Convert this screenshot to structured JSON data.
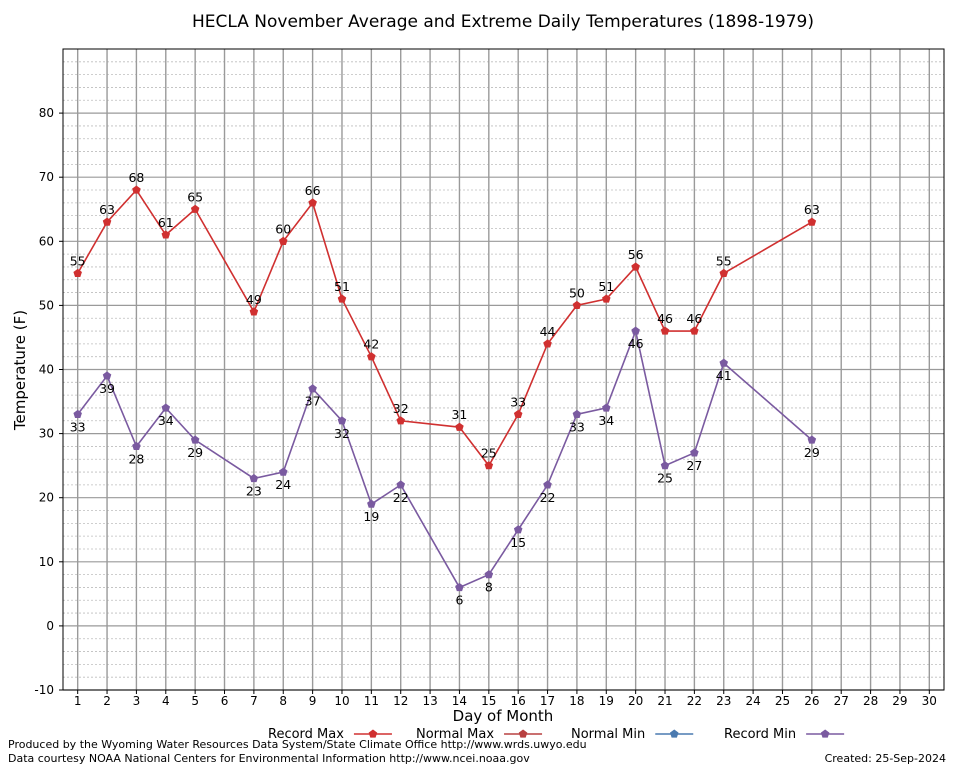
{
  "chart_data": {
    "type": "line",
    "title": "HECLA November Average and Extreme Daily Temperatures (1898-1979)",
    "xlabel": "Day of Month",
    "ylabel": "Temperature (F)",
    "xlim": [
      0.5,
      30.5
    ],
    "ylim": [
      -10,
      90
    ],
    "x_ticks": [
      1,
      2,
      3,
      4,
      5,
      6,
      7,
      8,
      9,
      10,
      11,
      12,
      13,
      14,
      15,
      16,
      17,
      18,
      19,
      20,
      21,
      22,
      23,
      24,
      25,
      26,
      27,
      28,
      29,
      30
    ],
    "y_ticks": [
      -10,
      0,
      10,
      20,
      30,
      40,
      50,
      60,
      70,
      80
    ],
    "grid": true,
    "legend_position": "bottom",
    "series": [
      {
        "name": "Record Max",
        "color": "#d03030",
        "label_position": "above",
        "x": [
          1,
          2,
          3,
          4,
          5,
          7,
          8,
          9,
          10,
          11,
          12,
          14,
          15,
          16,
          17,
          18,
          19,
          20,
          21,
          22,
          23,
          26
        ],
        "values": [
          55,
          63,
          68,
          61,
          65,
          49,
          60,
          66,
          51,
          42,
          32,
          31,
          25,
          33,
          44,
          50,
          51,
          56,
          46,
          46,
          55,
          63
        ]
      },
      {
        "name": "Normal Max",
        "color": "#b84040",
        "label_position": "none",
        "x": [],
        "values": []
      },
      {
        "name": "Normal Min",
        "color": "#4a7ab0",
        "label_position": "none",
        "x": [],
        "values": []
      },
      {
        "name": "Record Min",
        "color": "#7a5aa0",
        "label_position": "below",
        "x": [
          1,
          2,
          3,
          4,
          5,
          7,
          8,
          9,
          10,
          11,
          12,
          14,
          15,
          16,
          17,
          18,
          19,
          20,
          21,
          22,
          23,
          26
        ],
        "values": [
          33,
          39,
          28,
          34,
          29,
          23,
          24,
          37,
          32,
          19,
          22,
          6,
          8,
          15,
          22,
          33,
          34,
          46,
          25,
          27,
          41,
          29
        ]
      }
    ]
  },
  "footer": {
    "produced_by": "Produced by the Wyoming Water Resources Data System/State Climate Office http://www.wrds.uwyo.edu",
    "courtesy": "Data courtesy NOAA National Centers for Environmental Information http://www.ncei.noaa.gov",
    "created": "Created:  25-Sep-2024"
  }
}
